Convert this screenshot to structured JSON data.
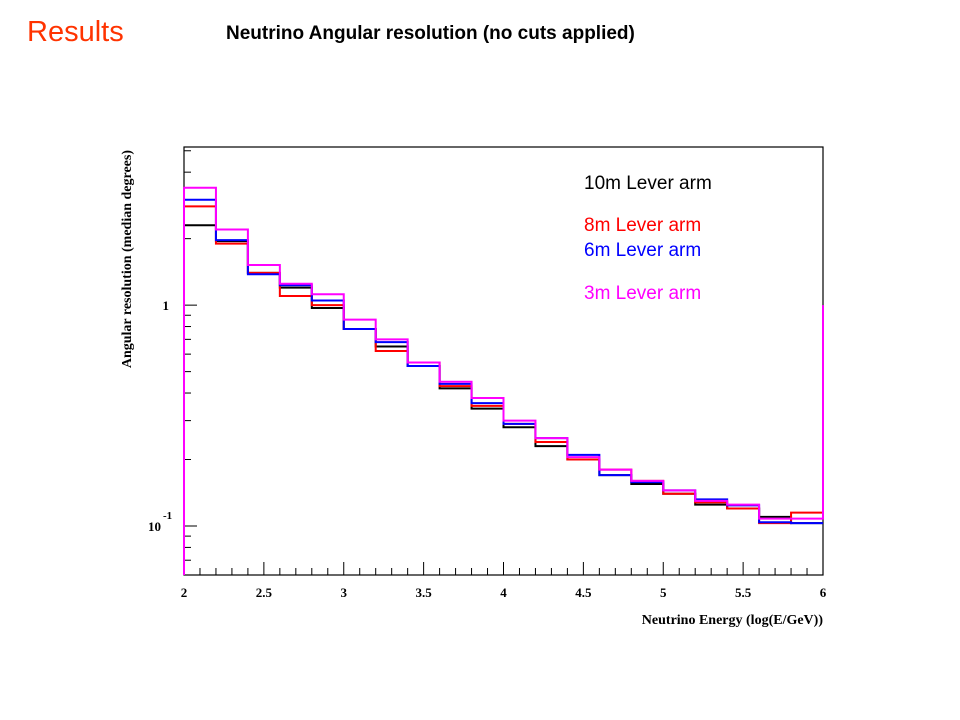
{
  "slide": {
    "heading": "Results",
    "title": "Neutrino Angular resolution (no cuts applied)"
  },
  "colors": {
    "heading": "#ff3300",
    "axis": "#000000"
  },
  "chart_data": {
    "type": "line",
    "step": true,
    "xlabel": "Neutrino Energy (log(E/GeV))",
    "ylabel": "Angular resolution (median degrees)",
    "xlim": [
      2,
      6
    ],
    "ylim": [
      0.06,
      5.2
    ],
    "yscale": "log",
    "grid": false,
    "legend_position": "top-right",
    "x_ticks": [
      2,
      2.5,
      3,
      3.5,
      4,
      4.5,
      5,
      5.5,
      6
    ],
    "x_tick_labels": [
      "2",
      "2.5",
      "3",
      "3.5",
      "4",
      "4.5",
      "5",
      "5.5",
      "6"
    ],
    "y_tick_labels": [
      {
        "value": 1,
        "label": "1",
        "exponent": ""
      },
      {
        "value": 0.1,
        "label": "10",
        "exponent": "-1"
      }
    ],
    "bin_edges": [
      2,
      2.2,
      2.4,
      2.6,
      2.8,
      3,
      3.2,
      3.4,
      3.6,
      3.8,
      4,
      4.2,
      4.4,
      4.6,
      4.8,
      5,
      5.2,
      5.4,
      5.6,
      5.8,
      6
    ],
    "series": [
      {
        "name": "10m Lever arm",
        "color": "#000000",
        "values": [
          2.3,
          1.95,
          1.4,
          1.2,
          0.97,
          0.78,
          0.65,
          0.53,
          0.42,
          0.34,
          0.28,
          0.23,
          0.2,
          0.17,
          0.155,
          0.14,
          0.125,
          0.12,
          0.11,
          0.103
        ]
      },
      {
        "name": "8m Lever arm",
        "color": "#ff0000",
        "values": [
          2.8,
          1.9,
          1.4,
          1.1,
          1.0,
          0.78,
          0.62,
          0.55,
          0.43,
          0.35,
          0.29,
          0.24,
          0.2,
          0.18,
          0.16,
          0.14,
          0.128,
          0.12,
          0.103,
          0.115
        ]
      },
      {
        "name": "6m Lever arm",
        "color": "#0000ff",
        "values": [
          3.0,
          1.97,
          1.38,
          1.23,
          1.05,
          0.78,
          0.68,
          0.53,
          0.44,
          0.36,
          0.29,
          0.25,
          0.21,
          0.17,
          0.158,
          0.145,
          0.132,
          0.124,
          0.104,
          0.103
        ]
      },
      {
        "name": "3m Lever arm",
        "color": "#ff00ff",
        "values": [
          3.4,
          2.2,
          1.52,
          1.25,
          1.12,
          0.86,
          0.7,
          0.55,
          0.45,
          0.38,
          0.3,
          0.25,
          0.205,
          0.18,
          0.16,
          0.145,
          0.13,
          0.125,
          0.108,
          0.108
        ]
      }
    ]
  }
}
